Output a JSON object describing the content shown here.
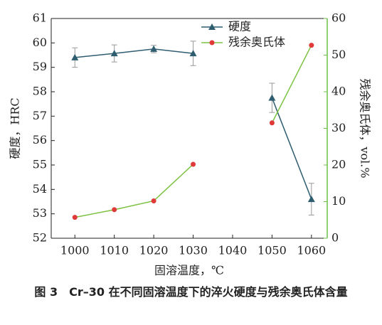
{
  "chart_data": {
    "type": "line",
    "x_label": "固溶温度，℃",
    "y_label": "硬度，HRC",
    "y2_label": "残余奥氏体，vol.%",
    "caption": "图 3　Cr–30 在不同固溶温度下的淬火硬度与残余奥氏体含量",
    "x": [
      1000,
      1010,
      1020,
      1030,
      1040,
      1050,
      1060
    ],
    "xlim": [
      994,
      1064
    ],
    "xticks": [
      1000,
      1010,
      1020,
      1030,
      1040,
      1050,
      1060
    ],
    "ylim": [
      52,
      61
    ],
    "yticks": [
      52,
      53,
      54,
      55,
      56,
      57,
      58,
      59,
      60,
      61
    ],
    "y2lim": [
      0,
      60
    ],
    "y2ticks": [
      0,
      10,
      20,
      30,
      40,
      50,
      60
    ],
    "y2_color": "#6cc04a",
    "legend": "upper right",
    "series": [
      {
        "name": "硬度",
        "color": "#2e5d70",
        "marker": "triangle",
        "marker_color": "#2e5d70",
        "values": [
          59.4,
          59.57,
          59.75,
          59.57,
          null,
          57.75,
          53.6
        ],
        "errors": [
          0.4,
          0.35,
          0.15,
          0.5,
          null,
          0.6,
          0.65
        ]
      },
      {
        "name": "残余奥氏体",
        "color": "#7dc242",
        "marker": "circle",
        "marker_color": "#e0393a",
        "axis": "y2",
        "values": [
          5.7,
          7.8,
          10.2,
          20.2,
          null,
          31.5,
          52.7
        ]
      }
    ]
  }
}
